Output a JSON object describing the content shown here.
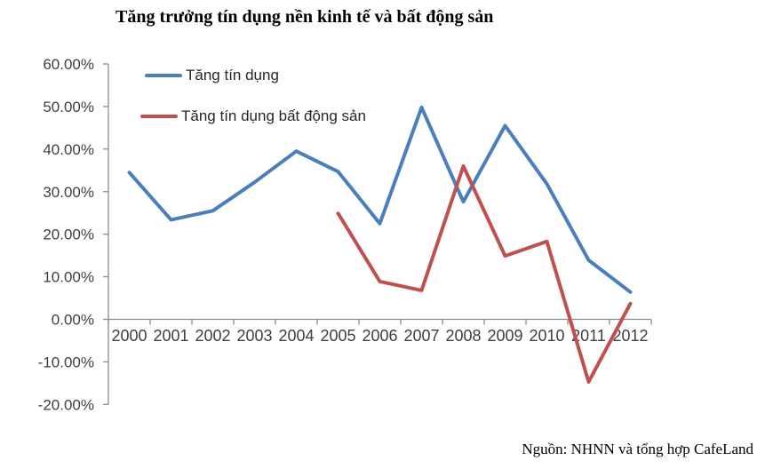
{
  "title": "Tăng trưởng tín dụng nền kinh tế và bất động sản",
  "source": "Nguồn: NHNN và tổng hợp CafeLand",
  "colors": {
    "series_credit": "#4A7EBD",
    "series_real_estate": "#C0504D",
    "axis": "#8C8C8C",
    "label_text": "#3F3F3F"
  },
  "legend": {
    "items": [
      {
        "label": "Tăng tín dụng",
        "color": "#4A7EBD"
      },
      {
        "label": "Tăng tín dụng bất động sản",
        "color": "#C0504D"
      }
    ]
  },
  "chart_data": {
    "type": "line",
    "title": "Tăng trưởng tín dụng nền kinh tế và bất động sản",
    "xlabel": "",
    "ylabel": "",
    "categories": [
      "2000",
      "2001",
      "2002",
      "2003",
      "2004",
      "2005",
      "2006",
      "2007",
      "2008",
      "2009",
      "2010",
      "2011",
      "2012"
    ],
    "series": [
      {
        "name": "Tăng tín dụng",
        "color": "#4A7EBD",
        "values": [
          34.5,
          23.4,
          25.5,
          32.2,
          39.5,
          34.7,
          22.5,
          49.8,
          27.6,
          45.5,
          31.8,
          13.9,
          6.4
        ]
      },
      {
        "name": "Tăng tín dụng bất động sản",
        "color": "#C0504D",
        "values": [
          null,
          null,
          null,
          null,
          null,
          24.9,
          8.9,
          6.8,
          36.0,
          14.9,
          18.3,
          -14.7,
          3.7
        ]
      }
    ],
    "ylim": [
      -20,
      60
    ],
    "ytick_step": 10,
    "ytick_labels": [
      "60.00%",
      "50.00%",
      "40.00%",
      "30.00%",
      "20.00%",
      "10.00%",
      "0.00%",
      "-10.00%",
      "-20.00%"
    ],
    "grid": false,
    "legend_position": "top-left"
  }
}
